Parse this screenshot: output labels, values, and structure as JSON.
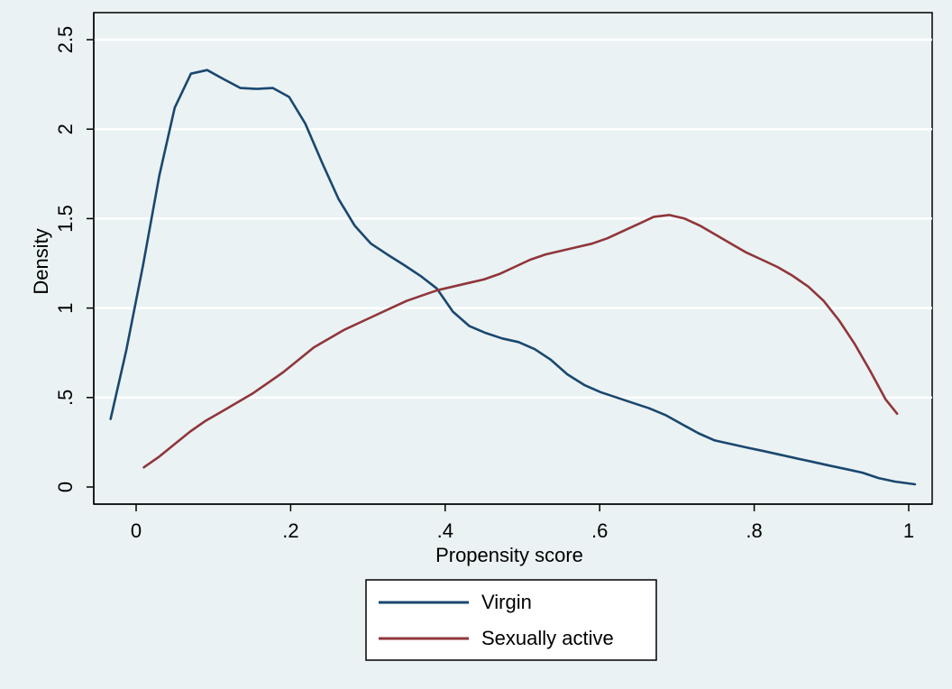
{
  "chart_data": {
    "type": "line",
    "xlabel": "Propensity score",
    "ylabel": "Density",
    "xlim": [
      -0.055,
      1.025
    ],
    "ylim": [
      0,
      2.5
    ],
    "x_ticks": [
      0,
      0.2,
      0.4,
      0.6,
      0.8,
      1
    ],
    "x_tick_labels": [
      "0",
      ".2",
      ".4",
      ".6",
      ".8",
      "1"
    ],
    "y_ticks": [
      0,
      0.5,
      1,
      1.5,
      2,
      2.5
    ],
    "y_tick_labels": [
      "0",
      ".5",
      "1",
      "1.5",
      "2",
      "2.5"
    ],
    "grid": "horizontal",
    "legend_position": "bottom-center",
    "series": [
      {
        "name": "Virgin",
        "color": "#1a476f",
        "x": [
          -0.033,
          -0.013,
          0.009,
          0.03,
          0.05,
          0.071,
          0.092,
          0.113,
          0.135,
          0.156,
          0.177,
          0.198,
          0.219,
          0.241,
          0.262,
          0.283,
          0.304,
          0.325,
          0.347,
          0.368,
          0.389,
          0.41,
          0.431,
          0.453,
          0.474,
          0.495,
          0.516,
          0.537,
          0.558,
          0.58,
          0.601,
          0.622,
          0.643,
          0.664,
          0.686,
          0.707,
          0.728,
          0.749,
          0.77,
          0.791,
          0.813,
          0.834,
          0.855,
          0.876,
          0.897,
          0.919,
          0.94,
          0.961,
          0.982,
          1.008
        ],
        "y": [
          0.38,
          0.76,
          1.24,
          1.74,
          2.12,
          2.31,
          2.33,
          2.28,
          2.23,
          2.225,
          2.23,
          2.18,
          2.03,
          1.81,
          1.61,
          1.46,
          1.36,
          1.3,
          1.24,
          1.18,
          1.11,
          0.98,
          0.9,
          0.86,
          0.83,
          0.81,
          0.77,
          0.71,
          0.63,
          0.57,
          0.53,
          0.5,
          0.47,
          0.44,
          0.4,
          0.35,
          0.3,
          0.26,
          0.24,
          0.22,
          0.2,
          0.18,
          0.16,
          0.14,
          0.12,
          0.1,
          0.08,
          0.05,
          0.03,
          0.015
        ]
      },
      {
        "name": "Sexually active",
        "color": "#90353b",
        "x": [
          0.01,
          0.03,
          0.05,
          0.07,
          0.09,
          0.11,
          0.13,
          0.15,
          0.17,
          0.19,
          0.21,
          0.23,
          0.25,
          0.27,
          0.29,
          0.31,
          0.33,
          0.35,
          0.37,
          0.39,
          0.41,
          0.43,
          0.45,
          0.47,
          0.49,
          0.51,
          0.53,
          0.55,
          0.57,
          0.59,
          0.61,
          0.63,
          0.65,
          0.67,
          0.69,
          0.71,
          0.73,
          0.75,
          0.77,
          0.79,
          0.81,
          0.83,
          0.85,
          0.87,
          0.89,
          0.91,
          0.93,
          0.95,
          0.97,
          0.985
        ],
        "y": [
          0.11,
          0.17,
          0.24,
          0.31,
          0.37,
          0.42,
          0.47,
          0.52,
          0.58,
          0.64,
          0.71,
          0.78,
          0.83,
          0.88,
          0.92,
          0.96,
          1.0,
          1.04,
          1.07,
          1.1,
          1.12,
          1.14,
          1.16,
          1.19,
          1.23,
          1.27,
          1.3,
          1.32,
          1.34,
          1.36,
          1.39,
          1.43,
          1.47,
          1.51,
          1.52,
          1.5,
          1.46,
          1.41,
          1.36,
          1.31,
          1.27,
          1.23,
          1.18,
          1.12,
          1.04,
          0.93,
          0.8,
          0.65,
          0.49,
          0.41
        ]
      }
    ]
  }
}
